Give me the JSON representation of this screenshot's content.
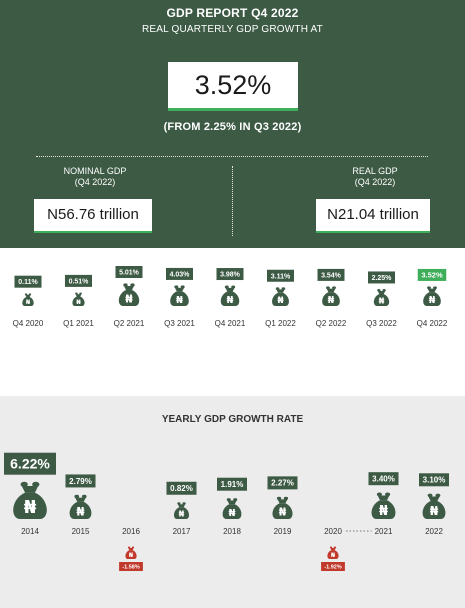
{
  "header": {
    "title": "GDP REPORT Q4 2022",
    "subtitle": "REAL QUARTERLY GDP GROWTH  AT",
    "headline_value": "3.52%",
    "from_text": "(FROM 2.25% IN Q3 2022)"
  },
  "nominal": {
    "label": "NOMINAL GDP",
    "period": "(Q4 2022)",
    "value": "N56.76 trillion"
  },
  "real": {
    "label": "REAL GDP",
    "period": "(Q4 2022)",
    "value": "N21.04 trillion"
  },
  "yearly_title": "YEARLY GDP GROWTH RATE",
  "colors": {
    "dark_green": "#3d5a45",
    "bright_green": "#3fae5a",
    "negative_red": "#c0392b",
    "light_gray": "#ececec"
  },
  "icons": {
    "bag": "money-bag-icon",
    "currency": "naira-sign"
  },
  "chart_data": [
    {
      "type": "bar",
      "title": "",
      "categories": [
        "Q4 2020",
        "Q1 2021",
        "Q2 2021",
        "Q3 2021",
        "Q4 2021",
        "Q1 2022",
        "Q2 2022",
        "Q3 2022",
        "Q4 2022"
      ],
      "values": [
        0.11,
        0.51,
        5.01,
        4.03,
        3.98,
        3.11,
        3.54,
        2.25,
        3.52
      ],
      "labels": [
        "0.11%",
        "0.51%",
        "5.01%",
        "4.03%",
        "3.98%",
        "3.11%",
        "3.54%",
        "2.25%",
        "3.52%"
      ],
      "highlight": "Q4 2022",
      "unit": "%"
    },
    {
      "type": "bar",
      "title": "YEARLY GDP GROWTH RATE",
      "categories": [
        "2014",
        "2015",
        "2016",
        "2017",
        "2018",
        "2019",
        "2020",
        "2021",
        "2022"
      ],
      "values": [
        6.22,
        2.79,
        -1.58,
        0.82,
        1.91,
        2.27,
        -1.92,
        3.4,
        3.1
      ],
      "labels": [
        "6.22%",
        "2.79%",
        "-1.58%",
        "0.82%",
        "1.91%",
        "2.27%",
        "-1.92%",
        "3.40%",
        "3.10%"
      ],
      "unit": "%"
    }
  ]
}
